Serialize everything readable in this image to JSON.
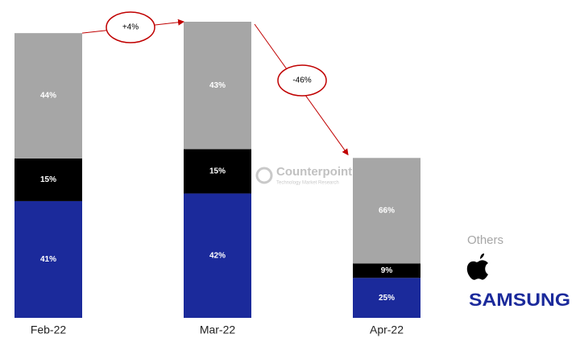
{
  "chart_data": {
    "type": "stacked-bar",
    "categories": [
      "Feb-22",
      "Mar-22",
      "Apr-22"
    ],
    "series": [
      {
        "name": "SAMSUNG",
        "color": "#1b2a9b",
        "values": [
          41,
          42,
          25
        ],
        "value_labels": [
          "41%",
          "42%",
          "25%"
        ]
      },
      {
        "color": "#000000",
        "values": [
          15,
          15,
          9
        ],
        "value_labels": [
          "15%",
          "15%",
          "9%"
        ]
      },
      {
        "name": "Others",
        "color": "#a6a6a6",
        "values": [
          44,
          43,
          66
        ],
        "value_labels": [
          "44%",
          "43%",
          "66%"
        ]
      }
    ],
    "changes": [
      {
        "value": 4,
        "label": "+4%"
      },
      {
        "value": -46,
        "label": "-46%"
      }
    ],
    "annotation_color": "#c00000",
    "watermark": {
      "title": "Counterpoint",
      "subtitle": "Technology Market Research"
    }
  }
}
